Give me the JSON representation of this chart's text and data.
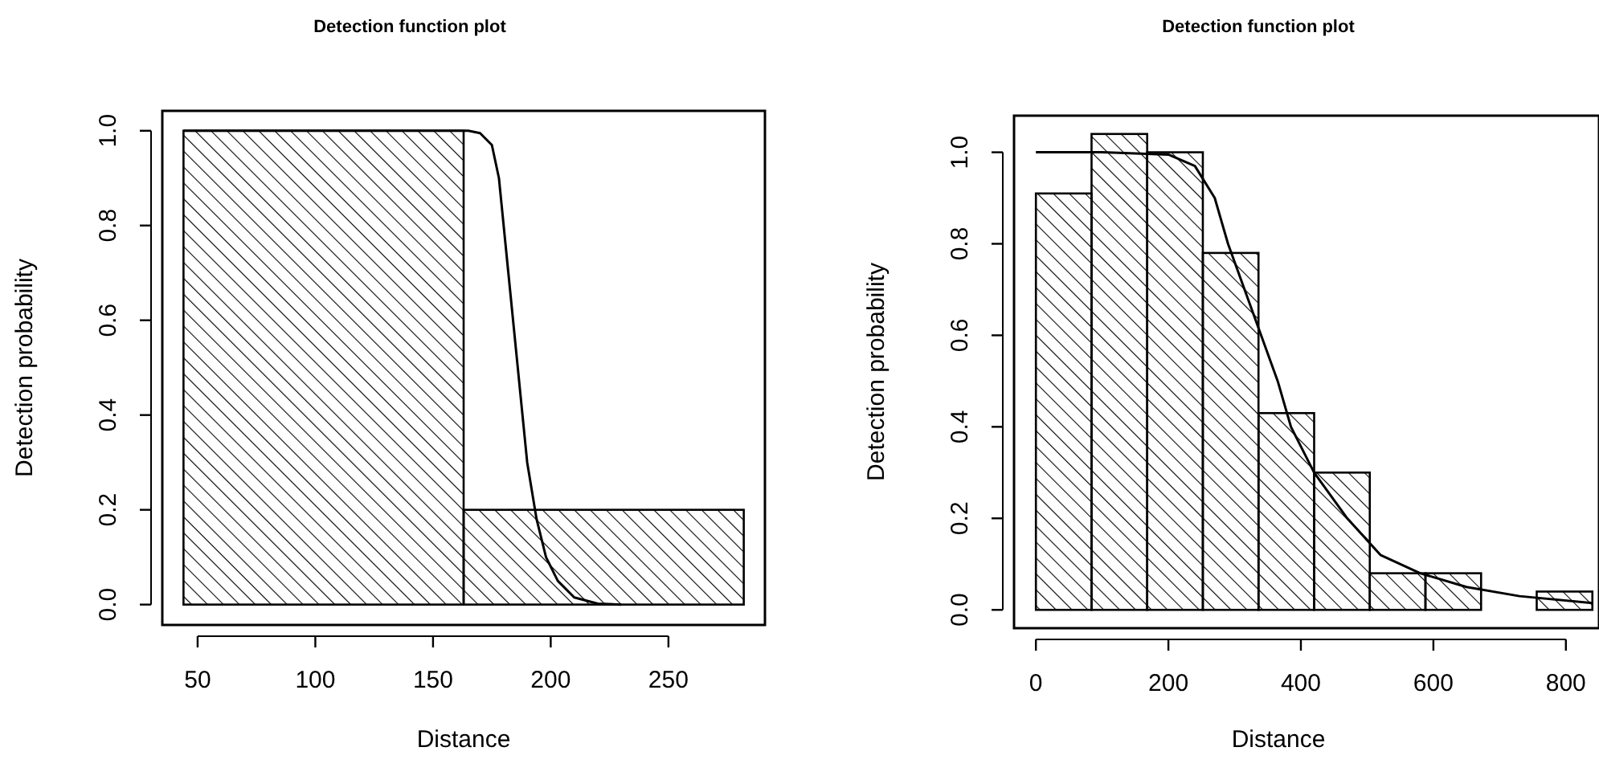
{
  "chart_data": [
    {
      "type": "histogram",
      "title": "Detection function plot",
      "xlabel": "Distance",
      "ylabel": "Detection probability",
      "xlim": [
        35,
        291
      ],
      "ylim": [
        -0.043,
        1.042
      ],
      "xticks": [
        50,
        100,
        150,
        200,
        250
      ],
      "yticks": [
        {
          "value": 0,
          "label": "0.0"
        },
        {
          "value": 0.2,
          "label": "0.2"
        },
        {
          "value": 0.4,
          "label": "0.4"
        },
        {
          "value": 0.6,
          "label": "0.6"
        },
        {
          "value": 0.8,
          "label": "0.8"
        },
        {
          "value": 1,
          "label": "1.0"
        }
      ],
      "grid": false,
      "series": [
        {
          "color": "#000000",
          "bins": [
            44,
            163,
            282
          ],
          "values": [
            1.0,
            0.2
          ]
        },
        {
          "type": "line",
          "color": "#000000",
          "x": [
            44,
            165,
            170,
            175,
            178,
            182,
            186,
            190,
            194,
            198,
            203,
            210,
            220,
            230
          ],
          "values": [
            1,
            1,
            0.995,
            0.97,
            0.9,
            0.7,
            0.5,
            0.3,
            0.18,
            0.1,
            0.05,
            0.015,
            0.002,
            0
          ]
        }
      ]
    },
    {
      "type": "histogram",
      "title": "Detection function plot",
      "xlabel": "Distance",
      "ylabel": "Detection probability",
      "xlim": [
        -33,
        850
      ],
      "ylim": [
        -0.04,
        1.08
      ],
      "xticks": [
        0,
        200,
        400,
        600,
        800
      ],
      "yticks": [
        {
          "value": 0,
          "label": "0.0"
        },
        {
          "value": 0.2,
          "label": "0.2"
        },
        {
          "value": 0.4,
          "label": "0.4"
        },
        {
          "value": 0.6,
          "label": "0.6"
        },
        {
          "value": 0.8,
          "label": "0.8"
        },
        {
          "value": 1,
          "label": "1.0"
        }
      ],
      "grid": false,
      "series": [
        {
          "color": "#000000",
          "bins": [
            0,
            84,
            168,
            252,
            336,
            420,
            504,
            588,
            672,
            756,
            840
          ],
          "values": [
            0.91,
            1.04,
            1.0,
            0.78,
            0.43,
            0.3,
            0.08,
            0.08,
            0,
            0.04
          ]
        },
        {
          "type": "line",
          "color": "#000000",
          "x": [
            0,
            100,
            200,
            240,
            270,
            290,
            315,
            340,
            365,
            385,
            420,
            470,
            520,
            580,
            650,
            730,
            840
          ],
          "values": [
            1,
            1,
            0.995,
            0.97,
            0.9,
            0.8,
            0.7,
            0.6,
            0.5,
            0.4,
            0.3,
            0.2,
            0.12,
            0.08,
            0.05,
            0.03,
            0.015
          ]
        }
      ]
    }
  ]
}
